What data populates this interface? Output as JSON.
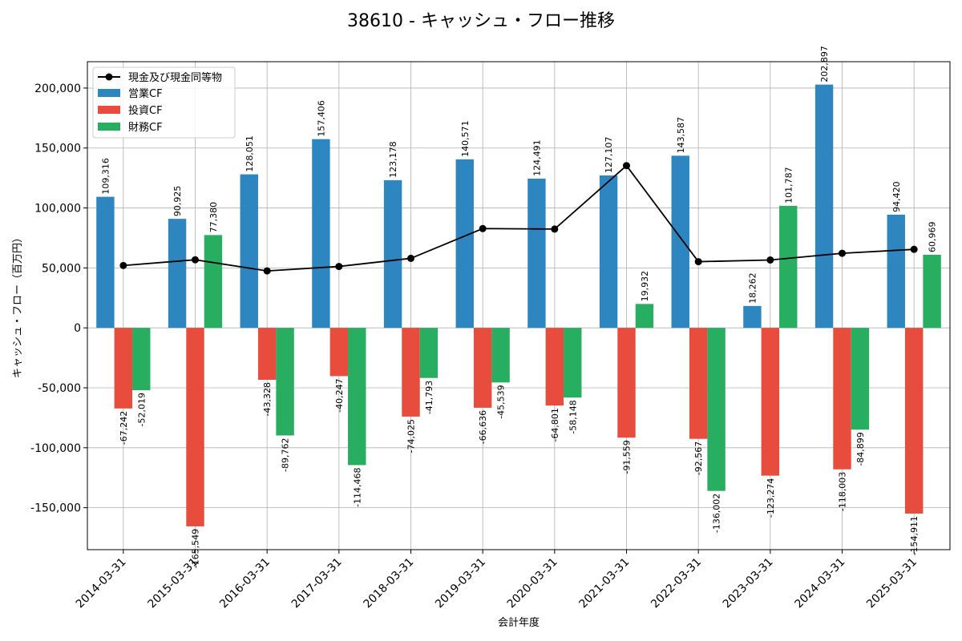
{
  "chart_data": {
    "type": "bar",
    "title": "38610 - キャッシュ・フロー推移",
    "xlabel": "会計年度",
    "ylabel": "キャッシュ・フロー（百万円）",
    "categories": [
      "2014-03-31",
      "2015-03-31",
      "2016-03-31",
      "2017-03-31",
      "2018-03-31",
      "2019-03-31",
      "2020-03-31",
      "2021-03-31",
      "2022-03-31",
      "2023-03-31",
      "2024-03-31",
      "2025-03-31"
    ],
    "ylim": [
      -185000,
      222000
    ],
    "yticks": [
      -150000,
      -100000,
      -50000,
      0,
      50000,
      100000,
      150000,
      200000
    ],
    "ytick_labels": [
      "-150,000",
      "-100,000",
      "-50,000",
      "0",
      "50,000",
      "100,000",
      "150,000",
      "200,000"
    ],
    "grid": true,
    "legend_position": "top-left",
    "series": [
      {
        "name": "営業CF",
        "kind": "bar",
        "color": "#2e86c1",
        "values": [
          109316,
          90925,
          128051,
          157406,
          123178,
          140571,
          124491,
          127107,
          143587,
          18262,
          202897,
          94420
        ],
        "labels": [
          "109,316",
          "90,925",
          "128,051",
          "157,406",
          "123,178",
          "140,571",
          "124,491",
          "127,107",
          "143,587",
          "18,262",
          "202,897",
          "94,420"
        ]
      },
      {
        "name": "投資CF",
        "kind": "bar",
        "color": "#e74c3c",
        "values": [
          -67242,
          -165549,
          -43328,
          -40247,
          -74025,
          -66636,
          -64801,
          -91559,
          -92567,
          -123274,
          -118003,
          -154911
        ],
        "labels": [
          "-67,242",
          "-165,549",
          "-43,328",
          "-40,247",
          "-74,025",
          "-66,636",
          "-64,801",
          "-91,559",
          "-92,567",
          "-123,274",
          "-118,003",
          "-154,911"
        ]
      },
      {
        "name": "財務CF",
        "kind": "bar",
        "color": "#27ae60",
        "values": [
          -52019,
          77380,
          -89762,
          -114468,
          -41793,
          -45539,
          -58148,
          19932,
          -136002,
          101787,
          -84899,
          60969
        ],
        "labels": [
          "-52,019",
          "77,380",
          "-89,762",
          "-114,468",
          "-41,793",
          "-45,539",
          "-58,148",
          "19,932",
          "-136,002",
          "101,787",
          "-84,899",
          "60,969"
        ]
      },
      {
        "name": "現金及び現金同等物",
        "kind": "line",
        "color": "#000000",
        "values": [
          52000,
          56800,
          47500,
          51200,
          58000,
          82800,
          82400,
          135300,
          55200,
          56600,
          62200,
          65500
        ]
      }
    ]
  }
}
